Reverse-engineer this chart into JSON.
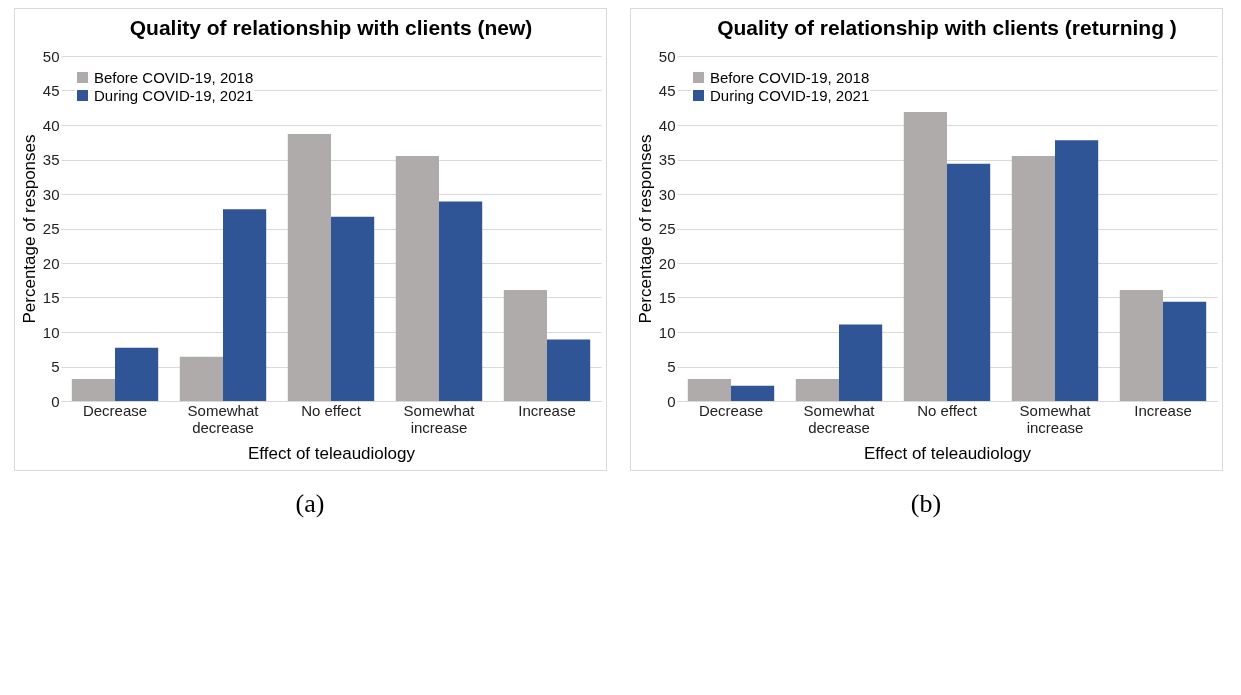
{
  "chart_data": [
    {
      "type": "bar",
      "title": "Quality of relationship with clients (new)",
      "xlabel": "Effect of teleaudiology",
      "ylabel": "Percentage of responses",
      "categories": [
        "Decrease",
        "Somewhat decrease",
        "No effect",
        "Somewhat increase",
        "Increase"
      ],
      "series": [
        {
          "name": "Before COVID-19, 2018",
          "color": "#afabab",
          "values": [
            3.2,
            6.4,
            38.7,
            35.5,
            16.1
          ]
        },
        {
          "name": "During COVID-19, 2021",
          "color": "#2f5597",
          "values": [
            7.7,
            27.8,
            26.7,
            28.9,
            8.9
          ]
        }
      ],
      "ylim": [
        0,
        50
      ],
      "yticks": [
        0,
        5,
        10,
        15,
        20,
        25,
        30,
        35,
        40,
        45,
        50
      ],
      "grid": "y",
      "legend": "top left",
      "annotations": [
        "(a)"
      ]
    },
    {
      "type": "bar",
      "title": "Quality of relationship with clients (returning )",
      "xlabel": "Effect of teleaudiology",
      "ylabel": "Percentage of responses",
      "categories": [
        "Decrease",
        "Somewhat decrease",
        "No effect",
        "Somewhat increase",
        "Increase"
      ],
      "series": [
        {
          "name": "Before COVID-19, 2018",
          "color": "#afabab",
          "values": [
            3.2,
            3.2,
            41.9,
            35.5,
            16.1
          ]
        },
        {
          "name": "During COVID-19, 2021",
          "color": "#2f5597",
          "values": [
            2.2,
            11.1,
            34.4,
            37.8,
            14.4
          ]
        }
      ],
      "ylim": [
        0,
        50
      ],
      "yticks": [
        0,
        5,
        10,
        15,
        20,
        25,
        30,
        35,
        40,
        45,
        50
      ],
      "grid": "y",
      "legend": "top left",
      "annotations": [
        "(b)"
      ]
    }
  ]
}
